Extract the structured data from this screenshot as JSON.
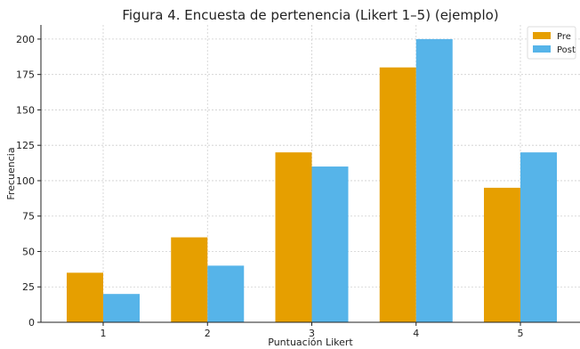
{
  "chart_data": {
    "type": "bar",
    "title": "Figura 4. Encuesta de pertenencia (Likert 1–5) (ejemplo)",
    "xlabel": "Puntuación Likert",
    "ylabel": "Frecuencia",
    "categories": [
      "1",
      "2",
      "3",
      "4",
      "5"
    ],
    "series": [
      {
        "name": "Pre",
        "values": [
          35,
          60,
          120,
          180,
          95
        ],
        "color": "#E69F00"
      },
      {
        "name": "Post",
        "values": [
          20,
          40,
          110,
          200,
          120
        ],
        "color": "#56B4E9"
      }
    ],
    "ylim": [
      0,
      210
    ],
    "yticks": [
      0,
      25,
      50,
      75,
      100,
      125,
      150,
      175,
      200
    ],
    "grid": true,
    "legend_position": "top-right"
  }
}
